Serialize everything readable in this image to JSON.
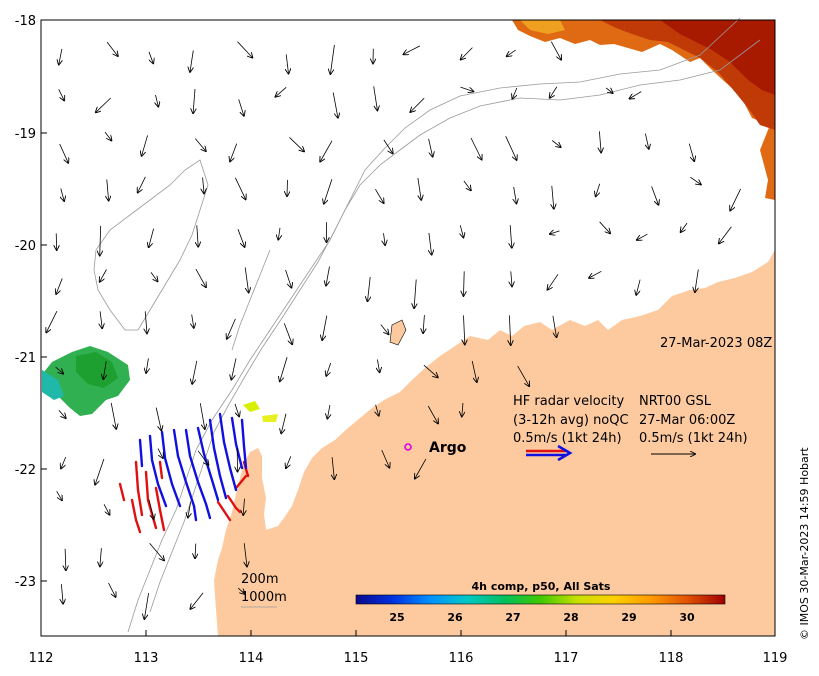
{
  "map": {
    "timestamp": "27-Mar-2023 08Z",
    "lon_ticks": [
      "112",
      "113",
      "114",
      "115",
      "116",
      "117",
      "118",
      "119"
    ],
    "lat_ticks": [
      "-18",
      "-19",
      "-20",
      "-21",
      "-22",
      "-23"
    ],
    "credit": "© IMOS 30-Mar-2023 14:59 Hobart"
  },
  "legend": {
    "hf_title": "HF radar velocity",
    "hf_qc": "(3-12h avg) noQC",
    "hf_scale": "0.5m/s (1kt 24h)",
    "gsl_title": "NRT00 GSL",
    "gsl_time": "27-Mar 06:00Z",
    "gsl_scale": "0.5m/s (1kt 24h)",
    "argo_label": "Argo",
    "contour_200": "200m",
    "contour_1000": "1000m"
  },
  "colorbar": {
    "title": "4h comp, p50, All Sats",
    "ticks": [
      "25",
      "26",
      "27",
      "28",
      "29",
      "30"
    ],
    "colors": [
      "#0a0a8c",
      "#0030e0",
      "#0090ff",
      "#00c8c8",
      "#00c060",
      "#40c800",
      "#c8e000",
      "#ffd000",
      "#ff9a00",
      "#e05000",
      "#a00000"
    ]
  },
  "colors": {
    "land": "#fdcaa0",
    "hf_blue": "#1010e0",
    "hf_red": "#e01010",
    "argo": "#e000e0",
    "sst_hot": "#a81a00"
  }
}
